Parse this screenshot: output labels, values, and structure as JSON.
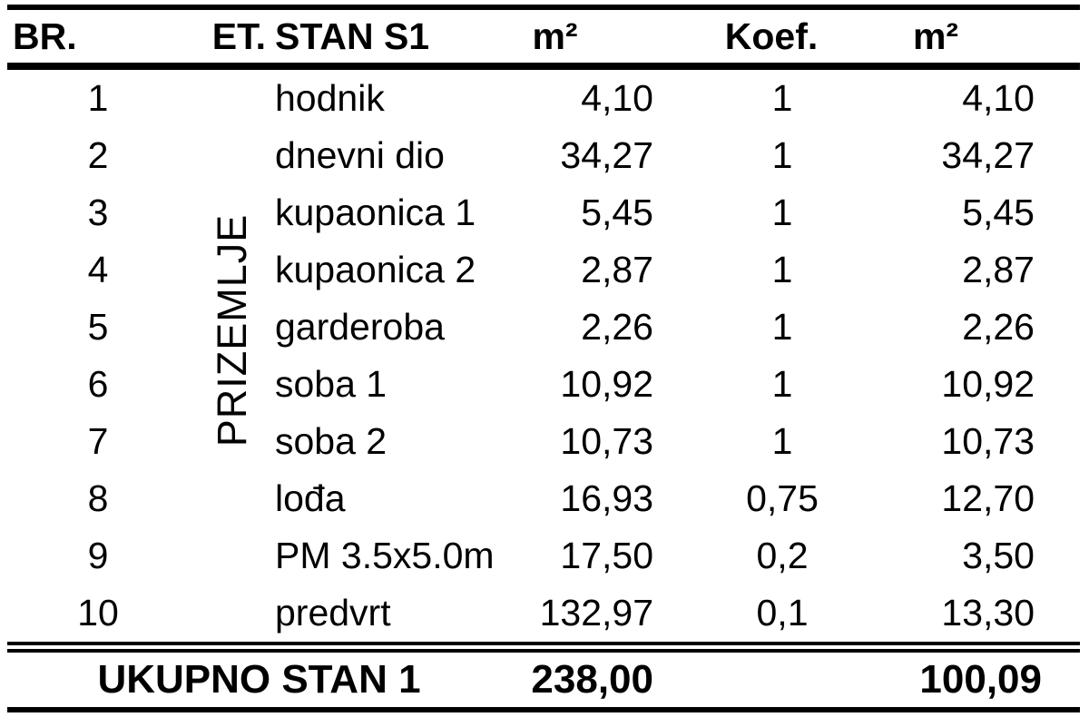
{
  "colors": {
    "text": "#000000",
    "background": "#ffffff",
    "border": "#000000"
  },
  "table": {
    "columns": {
      "br": "BR.",
      "et": "ET.",
      "stan": "STAN S1",
      "m2": "m²",
      "koef": "Koef.",
      "m2k": "m²"
    },
    "floor_label": "PRIZEMLJE",
    "rows": [
      {
        "br": "1",
        "name": "hodnik",
        "m2": "4,10",
        "koef": "1",
        "m2k": "4,10"
      },
      {
        "br": "2",
        "name": "dnevni dio",
        "m2": "34,27",
        "koef": "1",
        "m2k": "34,27"
      },
      {
        "br": "3",
        "name": "kupaonica 1",
        "m2": "5,45",
        "koef": "1",
        "m2k": "5,45"
      },
      {
        "br": "4",
        "name": "kupaonica 2",
        "m2": "2,87",
        "koef": "1",
        "m2k": "2,87"
      },
      {
        "br": "5",
        "name": "garderoba",
        "m2": "2,26",
        "koef": "1",
        "m2k": "2,26"
      },
      {
        "br": "6",
        "name": "soba 1",
        "m2": "10,92",
        "koef": "1",
        "m2k": "10,92"
      },
      {
        "br": "7",
        "name": "soba 2",
        "m2": "10,73",
        "koef": "1",
        "m2k": "10,73"
      },
      {
        "br": "8",
        "name": "lođa",
        "m2": "16,93",
        "koef": "0,75",
        "m2k": "12,70"
      },
      {
        "br": "9",
        "name": "PM 3.5x5.0m",
        "m2": "17,50",
        "koef": "0,2",
        "m2k": "3,50"
      },
      {
        "br": "10",
        "name": "predvrt",
        "m2": "132,97",
        "koef": "0,1",
        "m2k": "13,30"
      }
    ],
    "footer": {
      "label": "UKUPNO STAN 1",
      "m2": "238,00",
      "koef": "",
      "m2k": "100,09"
    }
  }
}
